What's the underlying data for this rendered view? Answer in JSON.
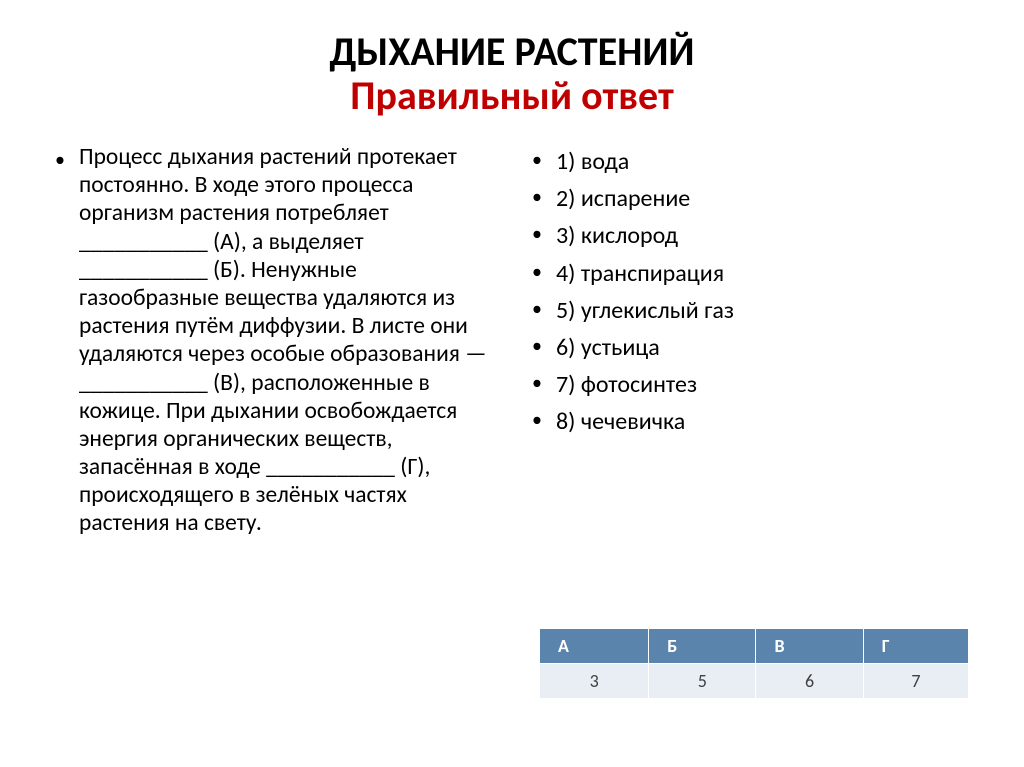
{
  "title": {
    "line1": "ДЫХАНИЕ РАСТЕНИЙ",
    "line2": "Правильный ответ",
    "line1_color": "#000000",
    "line2_color": "#c00000",
    "fontsize": 40
  },
  "paragraph": {
    "text": "Процесс дыхания растений протекает постоянно. В ходе этого процесса организм растения потребляет ___________ (А), а выделяет ___________ (Б). Ненужные газообразные вещества удаляются из растения путём диффузии. В листе они удаляются через особые образования — ___________ (В), расположенные в кожице. При дыхании освобождается энергия органических веществ, запасённая в ходе ___________ (Г), происходящего в зелёных частях растения на свету.",
    "fontsize": 23.5,
    "color": "#000000"
  },
  "options": [
    "1) вода",
    "2) испарение",
    "3) кислород",
    "4) транспирация",
    "5) углекислый газ",
    "6) устьица",
    "7) фотосинтез",
    "8) чечевичка"
  ],
  "options_style": {
    "fontsize": 24,
    "color": "#000000"
  },
  "table": {
    "headers": [
      "А",
      "Б",
      "В",
      "Г"
    ],
    "row": [
      "3",
      "5",
      "6",
      "7"
    ],
    "header_bg": "#5b84ad",
    "header_fg": "#ffffff",
    "cell_bg": "#e9eef4",
    "cell_fg": "#404040",
    "border_color": "#ffffff",
    "fontsize": 18
  },
  "background_color": "#ffffff"
}
